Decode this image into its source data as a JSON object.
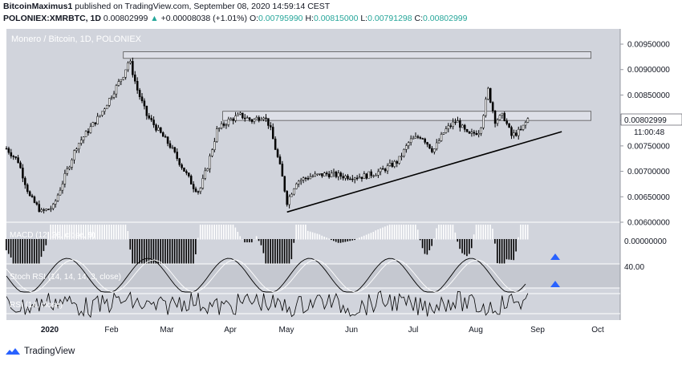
{
  "header": {
    "publisher": "BitcoinMaximus1",
    "published_text": "published on TradingView.com, September 08, 2020 14:59:14 CEST",
    "symbol": "POLONIEX:XMRBTC, 1D",
    "price": "0.00802999",
    "change_arrow": "▲",
    "change": "+0.00008038 (+1.01%)",
    "o_label": "O:",
    "o_value": "0.00795990",
    "h_label": "H:",
    "h_value": "0.00815000",
    "l_label": "L:",
    "l_value": "0.00791298",
    "c_label": "C:",
    "c_value": "0.00802999"
  },
  "chart_watermark": "Monero / Bitcoin, 1D, POLONIEX",
  "price_badge": {
    "price": "0.00802999",
    "countdown": "11:00:48"
  },
  "colors": {
    "pane_bg": "#d1d4dc",
    "candle": "#000000",
    "up_text": "#26a69a",
    "signal_arrow": "#2962ff",
    "badge_bg": "#ffffff"
  },
  "pane_labels": {
    "macd": "MACD (12, 26, close, 9)",
    "stoch": "Stoch RSI (14, 14, 14, 3, close)",
    "rsi": "RSI (14, close)"
  },
  "brand": "TradingView",
  "chart_data": {
    "type": "candlestick",
    "title": "Monero / Bitcoin, 1D, POLONIEX",
    "x_ticks": [
      "2020",
      "Feb",
      "Mar",
      "Apr",
      "May",
      "Jun",
      "Jul",
      "Aug",
      "Sep",
      "Oct"
    ],
    "y_ticks": [
      "0.00950000",
      "0.00900000",
      "0.00850000",
      "0.00800000",
      "0.00750000",
      "0.00700000",
      "0.00650000",
      "0.00600000"
    ],
    "ylim": [
      0.006,
      0.0098
    ],
    "macd_ticks": [
      "0.00000000"
    ],
    "stoch_ticks": [
      "40.00"
    ],
    "last_close": 0.00802999,
    "close_path": [
      {
        "t": 0,
        "v": 0.00745
      },
      {
        "t": 10,
        "v": 0.0072
      },
      {
        "t": 20,
        "v": 0.0065
      },
      {
        "t": 30,
        "v": 0.0062
      },
      {
        "t": 40,
        "v": 0.0063
      },
      {
        "t": 50,
        "v": 0.0069
      },
      {
        "t": 60,
        "v": 0.0075
      },
      {
        "t": 70,
        "v": 0.0078
      },
      {
        "t": 80,
        "v": 0.0081
      },
      {
        "t": 90,
        "v": 0.0085
      },
      {
        "t": 100,
        "v": 0.0089
      },
      {
        "t": 105,
        "v": 0.0092
      },
      {
        "t": 112,
        "v": 0.0086
      },
      {
        "t": 120,
        "v": 0.0081
      },
      {
        "t": 130,
        "v": 0.0078
      },
      {
        "t": 140,
        "v": 0.0075
      },
      {
        "t": 150,
        "v": 0.0071
      },
      {
        "t": 160,
        "v": 0.0067
      },
      {
        "t": 165,
        "v": 0.0066
      },
      {
        "t": 172,
        "v": 0.0071
      },
      {
        "t": 180,
        "v": 0.0078
      },
      {
        "t": 190,
        "v": 0.008
      },
      {
        "t": 200,
        "v": 0.0081
      },
      {
        "t": 210,
        "v": 0.008
      },
      {
        "t": 220,
        "v": 0.0081
      },
      {
        "t": 225,
        "v": 0.0079
      },
      {
        "t": 235,
        "v": 0.007
      },
      {
        "t": 240,
        "v": 0.0064
      },
      {
        "t": 248,
        "v": 0.0068
      },
      {
        "t": 260,
        "v": 0.0069
      },
      {
        "t": 275,
        "v": 0.00695
      },
      {
        "t": 290,
        "v": 0.0069
      },
      {
        "t": 305,
        "v": 0.0069
      },
      {
        "t": 320,
        "v": 0.007
      },
      {
        "t": 335,
        "v": 0.0072
      },
      {
        "t": 345,
        "v": 0.0076
      },
      {
        "t": 355,
        "v": 0.0077
      },
      {
        "t": 365,
        "v": 0.0074
      },
      {
        "t": 375,
        "v": 0.0078
      },
      {
        "t": 385,
        "v": 0.008
      },
      {
        "t": 395,
        "v": 0.0077
      },
      {
        "t": 405,
        "v": 0.0078
      },
      {
        "t": 412,
        "v": 0.0086
      },
      {
        "t": 418,
        "v": 0.008
      },
      {
        "t": 425,
        "v": 0.0081
      },
      {
        "t": 432,
        "v": 0.0077
      },
      {
        "t": 440,
        "v": 0.0078
      },
      {
        "t": 446,
        "v": 0.00803
      }
    ],
    "annotations": [
      {
        "kind": "resistance_box",
        "from_t": 100,
        "to_t": 500,
        "low": 0.00922,
        "high": 0.00935
      },
      {
        "kind": "resistance_box",
        "from_t": 185,
        "to_t": 500,
        "low": 0.008,
        "high": 0.00818
      },
      {
        "kind": "ascending_trendline",
        "from_t": 240,
        "from_v": 0.0062,
        "to_t": 475,
        "to_v": 0.00778
      }
    ]
  }
}
